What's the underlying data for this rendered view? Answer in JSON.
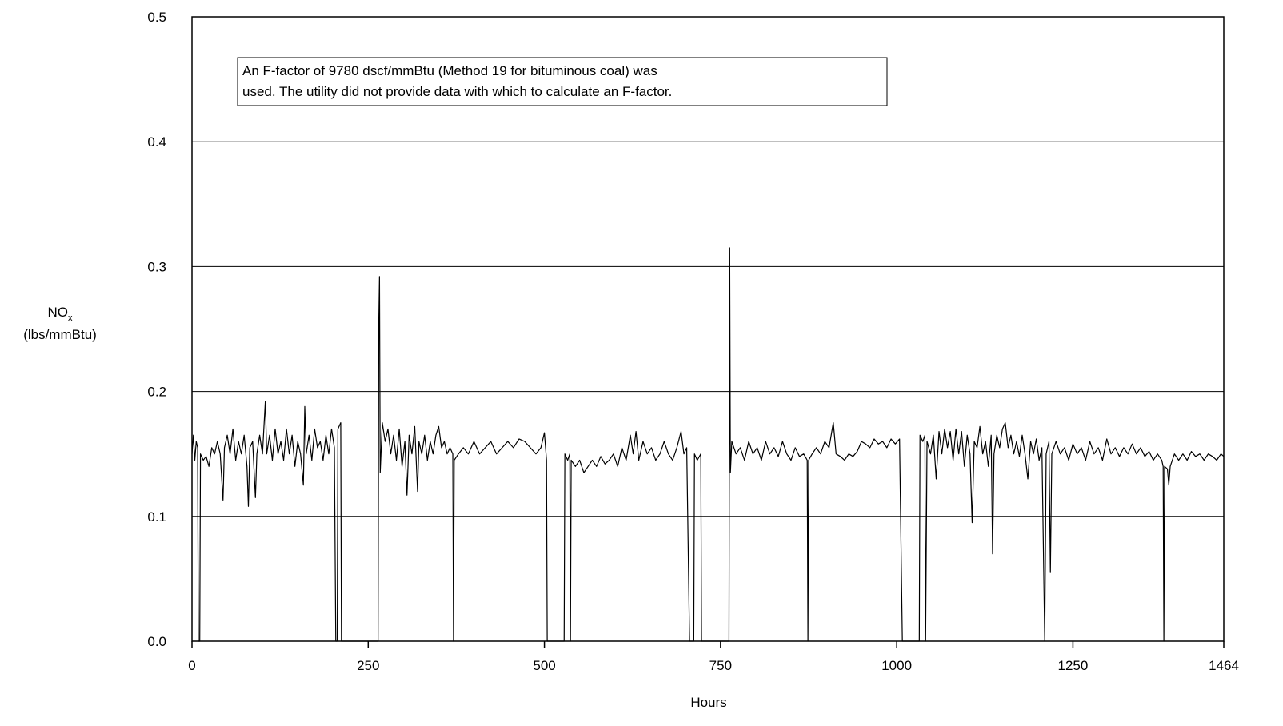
{
  "chart_data": {
    "type": "line",
    "y_label": {
      "main": "NO",
      "sub": "x",
      "unit": "(lbs/mmBtu)"
    },
    "x_label": "Hours",
    "annotation": [
      "An F-factor of 9780 dscf/mmBtu (Method 19 for bituminous coal) was",
      "used.  The utility did not provide data with which to calculate an F-factor."
    ],
    "color": "#000000",
    "grid": true,
    "xlim": [
      0,
      1464
    ],
    "xticks": [
      0,
      250,
      500,
      750,
      1000,
      1250,
      1464
    ],
    "ylim": [
      0,
      0.5
    ],
    "yticks": [
      {
        "value": 0,
        "label": "0.0"
      },
      0.1,
      0.2,
      0.3,
      0.4,
      0.5
    ],
    "x": [
      0,
      2,
      4,
      6,
      8,
      9,
      11,
      12,
      16,
      20,
      24,
      28,
      32,
      36,
      40,
      44,
      46,
      50,
      54,
      58,
      62,
      66,
      70,
      74,
      78,
      80,
      82,
      86,
      90,
      92,
      96,
      100,
      104,
      106,
      110,
      114,
      118,
      122,
      126,
      130,
      134,
      138,
      142,
      146,
      150,
      154,
      158,
      160,
      162,
      166,
      170,
      174,
      178,
      182,
      186,
      190,
      194,
      198,
      202,
      204,
      206,
      207,
      211,
      212,
      264,
      265,
      266,
      267,
      270,
      274,
      278,
      282,
      286,
      290,
      294,
      298,
      302,
      305,
      308,
      312,
      316,
      320,
      322,
      326,
      330,
      334,
      338,
      342,
      346,
      350,
      354,
      358,
      362,
      366,
      370,
      371,
      372,
      378,
      385,
      392,
      400,
      408,
      416,
      424,
      432,
      440,
      448,
      456,
      464,
      472,
      480,
      488,
      495,
      500,
      503,
      504,
      528,
      529,
      533,
      536,
      537,
      538,
      544,
      550,
      556,
      562,
      568,
      574,
      580,
      586,
      592,
      598,
      604,
      610,
      616,
      622,
      626,
      630,
      634,
      640,
      646,
      652,
      658,
      664,
      670,
      676,
      682,
      688,
      694,
      698,
      702,
      706,
      712,
      713,
      717,
      722,
      723,
      762,
      763,
      764,
      766,
      772,
      778,
      784,
      790,
      796,
      802,
      808,
      814,
      820,
      826,
      832,
      838,
      844,
      850,
      856,
      862,
      868,
      873,
      874,
      875,
      880,
      886,
      892,
      898,
      904,
      910,
      914,
      920,
      926,
      932,
      938,
      944,
      950,
      956,
      962,
      968,
      974,
      980,
      986,
      992,
      998,
      1004,
      1008,
      1032,
      1033,
      1037,
      1040,
      1041,
      1043,
      1048,
      1052,
      1056,
      1060,
      1064,
      1068,
      1072,
      1076,
      1080,
      1084,
      1088,
      1092,
      1096,
      1100,
      1104,
      1107,
      1110,
      1114,
      1118,
      1122,
      1126,
      1130,
      1134,
      1136,
      1138,
      1142,
      1146,
      1150,
      1154,
      1158,
      1162,
      1166,
      1170,
      1174,
      1178,
      1182,
      1186,
      1190,
      1194,
      1198,
      1202,
      1206,
      1210,
      1212,
      1216,
      1218,
      1220,
      1226,
      1232,
      1238,
      1244,
      1250,
      1256,
      1262,
      1268,
      1274,
      1280,
      1286,
      1292,
      1298,
      1304,
      1310,
      1316,
      1322,
      1328,
      1334,
      1340,
      1346,
      1352,
      1358,
      1364,
      1370,
      1376,
      1378,
      1379,
      1380,
      1384,
      1386,
      1388,
      1394,
      1400,
      1406,
      1412,
      1418,
      1424,
      1430,
      1436,
      1442,
      1448,
      1454,
      1460,
      1464
    ],
    "values": [
      0.15,
      0.165,
      0.145,
      0.16,
      0.155,
      0,
      0,
      0.15,
      0.145,
      0.148,
      0.14,
      0.155,
      0.15,
      0.16,
      0.15,
      0.113,
      0.155,
      0.165,
      0.15,
      0.17,
      0.145,
      0.16,
      0.15,
      0.165,
      0.14,
      0.108,
      0.155,
      0.16,
      0.115,
      0.15,
      0.165,
      0.15,
      0.192,
      0.15,
      0.165,
      0.145,
      0.17,
      0.15,
      0.16,
      0.145,
      0.17,
      0.15,
      0.165,
      0.14,
      0.16,
      0.15,
      0.125,
      0.188,
      0.15,
      0.165,
      0.145,
      0.17,
      0.155,
      0.16,
      0.145,
      0.165,
      0.15,
      0.17,
      0.155,
      0,
      0,
      0.17,
      0.175,
      0,
      0,
      0.255,
      0.292,
      0.135,
      0.175,
      0.16,
      0.17,
      0.15,
      0.165,
      0.145,
      0.17,
      0.14,
      0.16,
      0.117,
      0.165,
      0.15,
      0.172,
      0.12,
      0.16,
      0.15,
      0.165,
      0.145,
      0.16,
      0.15,
      0.165,
      0.172,
      0.155,
      0.16,
      0.15,
      0.155,
      0.15,
      0,
      0.145,
      0.15,
      0.155,
      0.15,
      0.16,
      0.15,
      0.155,
      0.16,
      0.15,
      0.155,
      0.16,
      0.155,
      0.162,
      0.16,
      0.155,
      0.15,
      0.155,
      0.167,
      0.145,
      0,
      0,
      0.15,
      0.145,
      0.15,
      0,
      0.145,
      0.14,
      0.145,
      0.135,
      0.14,
      0.145,
      0.14,
      0.148,
      0.142,
      0.145,
      0.15,
      0.14,
      0.155,
      0.145,
      0.165,
      0.15,
      0.168,
      0.145,
      0.16,
      0.15,
      0.155,
      0.145,
      0.15,
      0.16,
      0.15,
      0.145,
      0.155,
      0.168,
      0.15,
      0.155,
      0,
      0,
      0.15,
      0.145,
      0.15,
      0,
      0,
      0.315,
      0.135,
      0.16,
      0.15,
      0.155,
      0.145,
      0.16,
      0.15,
      0.155,
      0.145,
      0.16,
      0.15,
      0.155,
      0.148,
      0.16,
      0.15,
      0.145,
      0.155,
      0.148,
      0.15,
      0.145,
      0,
      0.145,
      0.15,
      0.155,
      0.15,
      0.16,
      0.155,
      0.175,
      0.15,
      0.148,
      0.145,
      0.15,
      0.148,
      0.152,
      0.16,
      0.158,
      0.155,
      0.162,
      0.158,
      0.16,
      0.155,
      0.162,
      0.158,
      0.162,
      0,
      0,
      0.165,
      0.16,
      0.165,
      0,
      0.16,
      0.15,
      0.165,
      0.13,
      0.168,
      0.15,
      0.17,
      0.155,
      0.168,
      0.145,
      0.17,
      0.15,
      0.168,
      0.14,
      0.165,
      0.15,
      0.095,
      0.16,
      0.155,
      0.172,
      0.15,
      0.16,
      0.14,
      0.165,
      0.07,
      0.15,
      0.165,
      0.155,
      0.17,
      0.175,
      0.155,
      0.165,
      0.15,
      0.16,
      0.148,
      0.165,
      0.15,
      0.13,
      0.16,
      0.15,
      0.162,
      0.145,
      0.155,
      0,
      0.15,
      0.16,
      0.055,
      0.15,
      0.16,
      0.15,
      0.155,
      0.145,
      0.158,
      0.15,
      0.155,
      0.145,
      0.16,
      0.15,
      0.155,
      0.145,
      0.162,
      0.15,
      0.155,
      0.148,
      0.155,
      0.15,
      0.158,
      0.15,
      0.155,
      0.148,
      0.152,
      0.145,
      0.15,
      0.145,
      0.14,
      0,
      0.14,
      0.138,
      0.125,
      0.14,
      0.15,
      0.145,
      0.15,
      0.145,
      0.152,
      0.148,
      0.15,
      0.145,
      0.15,
      0.148,
      0.145,
      0.15,
      0.148
    ]
  }
}
